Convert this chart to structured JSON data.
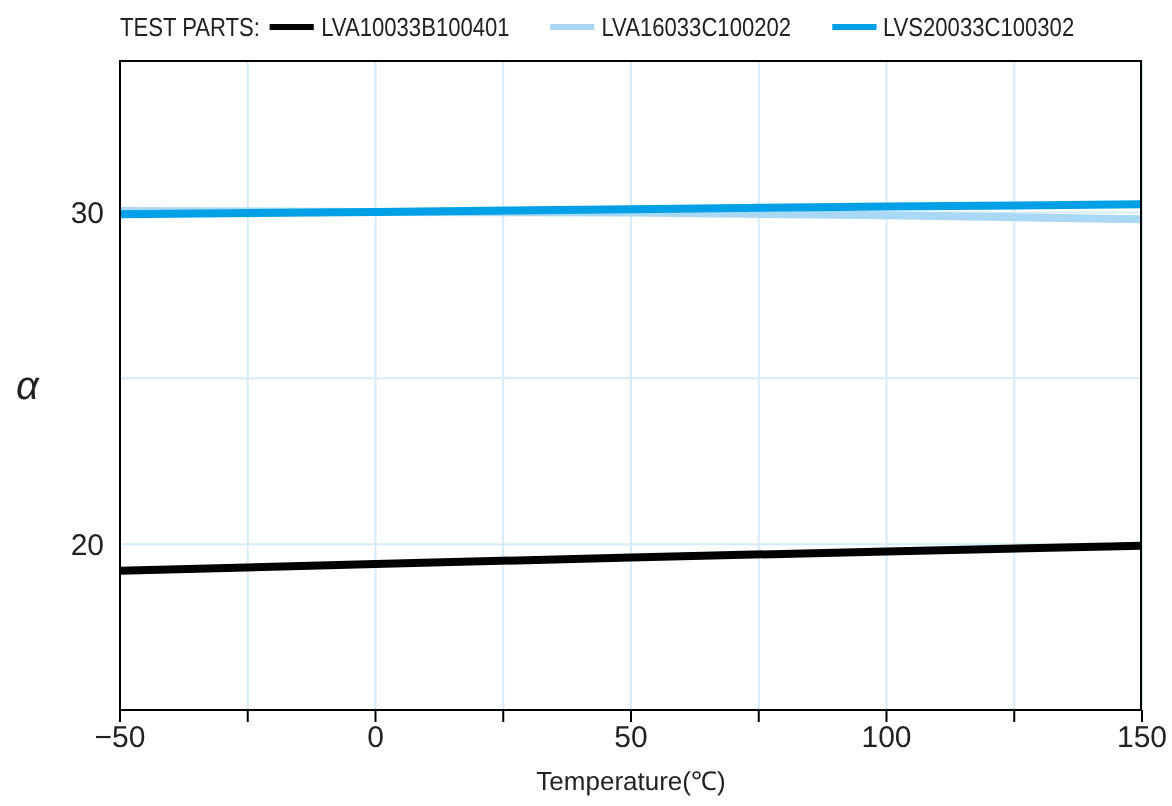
{
  "chart_data": {
    "type": "line",
    "xlabel": "Temperature(℃)",
    "ylabel": "α",
    "legend_title": "TEST PARTS:",
    "legend": "top",
    "x": [
      -50,
      0,
      50,
      100,
      150
    ],
    "series": [
      {
        "name": "LVA10033B100401",
        "color": "#000000",
        "values": [
          19.2,
          19.4,
          19.6,
          19.78,
          19.95
        ]
      },
      {
        "name": "LVA16033C100202",
        "color": "#a8d8f4",
        "values": [
          30.05,
          30.02,
          30.0,
          29.92,
          29.8
        ]
      },
      {
        "name": "LVS20033C100302",
        "color": "#00a0e6",
        "values": [
          29.95,
          30.02,
          30.1,
          30.18,
          30.25
        ]
      }
    ],
    "xlim": [
      -50,
      150
    ],
    "xticks": [
      -50,
      {
        "value": -25,
        "label": null
      },
      0,
      {
        "value": 25,
        "label": null
      },
      50,
      {
        "value": 75,
        "label": null
      },
      100,
      {
        "value": 125,
        "label": null
      },
      150
    ],
    "ylim": [
      15,
      34.6
    ],
    "yticks": [
      {
        "value": 15,
        "label": null
      },
      20,
      {
        "value": 25,
        "label": null
      },
      30
    ],
    "grid": true,
    "marker": "none",
    "line_style": "solid"
  }
}
